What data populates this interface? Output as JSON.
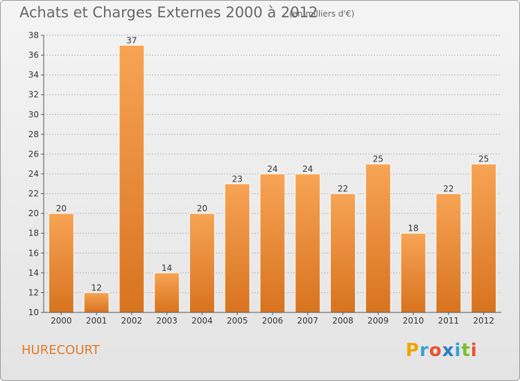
{
  "title": "Achats et Charges Externes 2000 à 2012",
  "subtitle": "(en milliers d'€)",
  "commune": "HURECOURT",
  "logo": {
    "letters": [
      "P",
      "r",
      "o",
      "x",
      "i",
      "t",
      "i"
    ],
    "colors": [
      "#f0a500",
      "#3aa0d8",
      "#e8532a",
      "#2a7fc1",
      "#3aa0d8",
      "#7bbf2a",
      "#e8532a"
    ]
  },
  "colors": {
    "bar_top": "#f7a455",
    "bar_bottom": "#d8731f",
    "bar_edge": "#ffffff",
    "grid": "#b5b5b5",
    "axis": "#555555"
  },
  "chart_data": {
    "type": "bar",
    "categories": [
      "2000",
      "2001",
      "2002",
      "2003",
      "2004",
      "2005",
      "2006",
      "2007",
      "2008",
      "2009",
      "2010",
      "2011",
      "2012"
    ],
    "values": [
      20,
      12,
      37,
      14,
      20,
      23,
      24,
      24,
      22,
      25,
      18,
      22,
      25
    ],
    "ylim": [
      10,
      38
    ],
    "yticks": [
      10,
      12,
      14,
      16,
      18,
      20,
      22,
      24,
      26,
      28,
      30,
      32,
      34,
      36,
      38
    ],
    "grid": true,
    "xlabel": "",
    "ylabel": ""
  }
}
